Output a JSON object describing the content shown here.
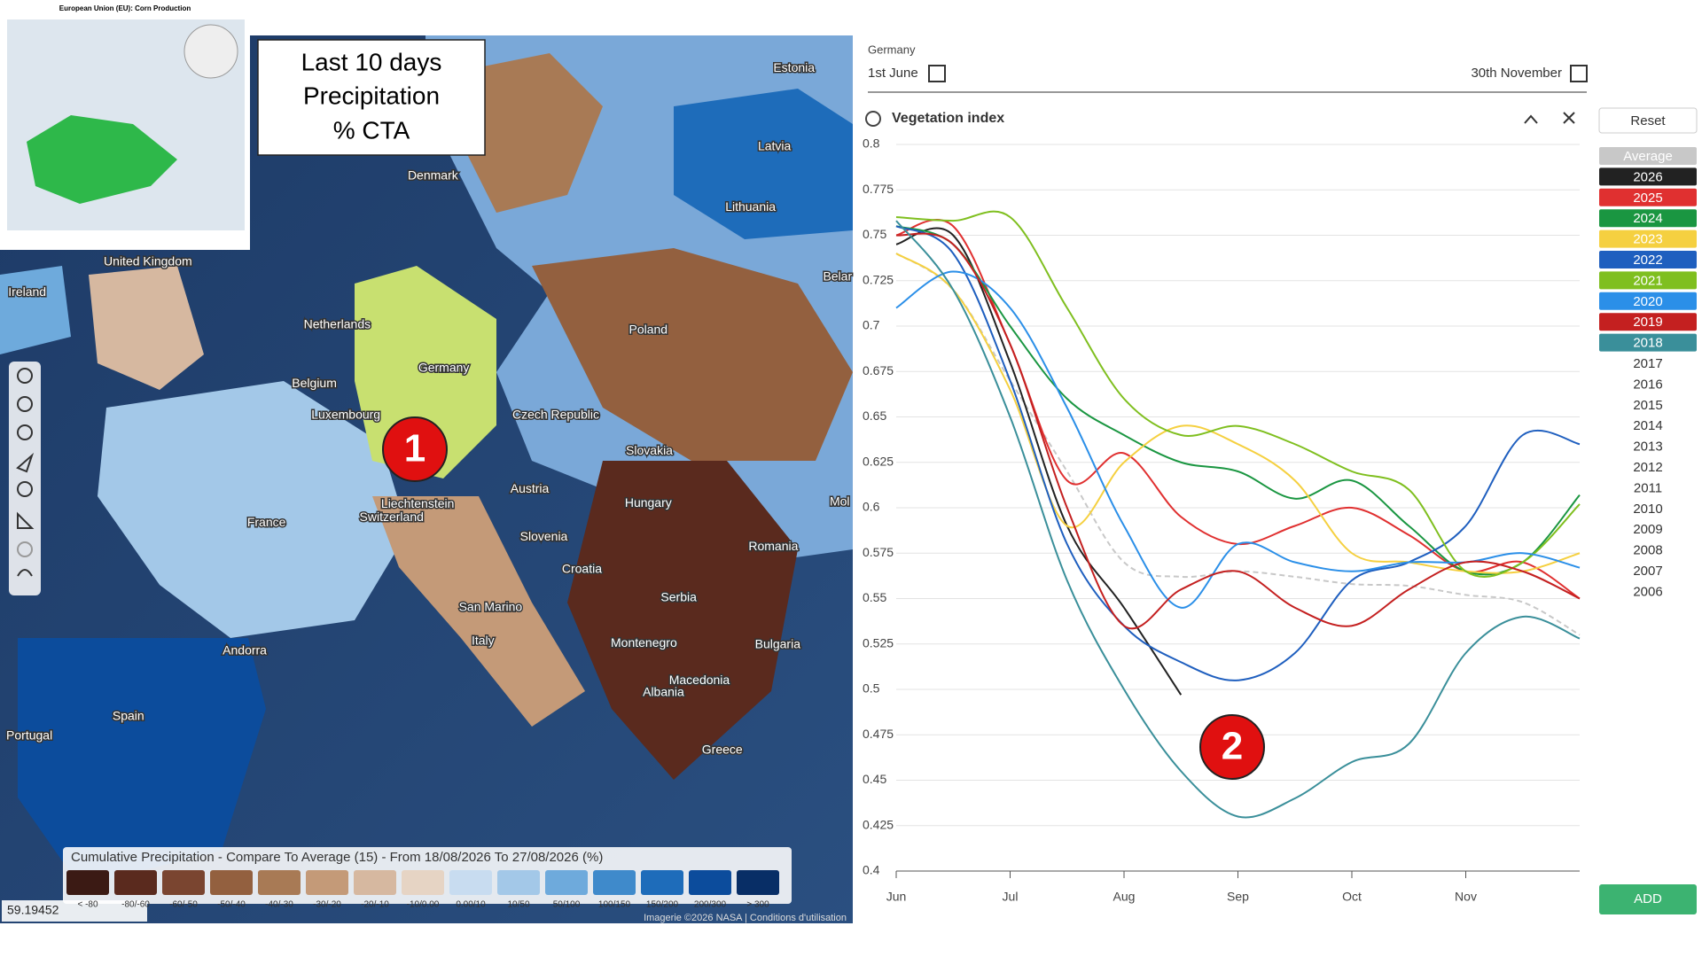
{
  "map": {
    "inset_title": "European Union (EU): Corn Production",
    "overlay_lines": [
      "Last 10 days",
      "Precipitation",
      "% CTA"
    ],
    "badge": "1",
    "country_labels": [
      "Estonia",
      "Latvia",
      "Lithuania",
      "Denmark",
      "United Kingdom",
      "Ireland",
      "Netherlands",
      "Poland",
      "Germany",
      "Belgium",
      "Luxembourg",
      "Czech Republic",
      "Slovakia",
      "France",
      "Liechtenstein",
      "Switzerland",
      "Austria",
      "Hungary",
      "Slovenia",
      "Croatia",
      "Romania",
      "Mol",
      "Belar",
      "San Marino",
      "Serbia",
      "Montenegro",
      "Bulgaria",
      "Andorra",
      "Italy",
      "Macedonia",
      "Albania",
      "Spain",
      "Portugal",
      "Greece"
    ],
    "legend": {
      "title": "Cumulative Precipitation - Compare To Average (15) - From 18/08/2026 To 27/08/2026 (%)",
      "bins": [
        {
          "label": "< -80",
          "color": "#3b1a14"
        },
        {
          "label": "-80/-60",
          "color": "#5a2a1e"
        },
        {
          "label": "-60/-50",
          "color": "#7a4530"
        },
        {
          "label": "-50/-40",
          "color": "#93603f"
        },
        {
          "label": "-40/-30",
          "color": "#a87a55"
        },
        {
          "label": "-30/-20",
          "color": "#c49a78"
        },
        {
          "label": "-20/-10",
          "color": "#d6b8a0"
        },
        {
          "label": "-10/0.00",
          "color": "#e6d4c4"
        },
        {
          "label": "0.00/10",
          "color": "#c8dcf0"
        },
        {
          "label": "10/50",
          "color": "#a3c8e8"
        },
        {
          "label": "50/100",
          "color": "#6eaadc"
        },
        {
          "label": "100/150",
          "color": "#3f8acb"
        },
        {
          "label": "150/200",
          "color": "#1e6cba"
        },
        {
          "label": "200/300",
          "color": "#0c4c9c"
        },
        {
          "label": "> 300",
          "color": "#082e66"
        }
      ]
    },
    "coordinates": "59.19452",
    "attribution": "Imagerie ©2026 NASA | Conditions d'utilisation"
  },
  "panel": {
    "region": "Germany",
    "start": "1st June",
    "end": "30th November",
    "reset": "Reset",
    "add": "ADD",
    "badge": "2",
    "other_years": [
      "2017",
      "2016",
      "2015",
      "2014",
      "2013",
      "2012",
      "2011",
      "2010",
      "2009",
      "2008",
      "2007",
      "2006"
    ]
  },
  "chart_data": {
    "type": "line",
    "title": "Vegetation index",
    "categories": [
      "Jun",
      null,
      "Jul",
      null,
      "Aug",
      null,
      "Sep",
      null,
      "Oct",
      null,
      "Nov",
      null,
      null
    ],
    "ylim": [
      0.4,
      0.8
    ],
    "yticks": [
      0.4,
      0.425,
      0.45,
      0.475,
      0.5,
      0.525,
      0.55,
      0.575,
      0.6,
      0.625,
      0.65,
      0.675,
      0.7,
      0.725,
      0.75,
      0.775,
      0.8
    ],
    "grid": true,
    "series": [
      {
        "name": "Average",
        "color": "#c8c8c8",
        "dashed": true,
        "values": [
          0.74,
          0.72,
          0.67,
          0.62,
          0.57,
          0.562,
          0.565,
          0.562,
          0.558,
          0.557,
          0.552,
          0.548,
          0.53
        ]
      },
      {
        "name": "2026",
        "color": "#222222",
        "values": [
          0.745,
          0.75,
          0.68,
          0.59,
          0.545,
          0.497,
          null,
          null,
          null,
          null,
          null,
          null,
          null
        ]
      },
      {
        "name": "2025",
        "color": "#e03030",
        "values": [
          0.75,
          0.755,
          0.69,
          0.615,
          0.63,
          0.595,
          0.58,
          0.59,
          0.6,
          0.585,
          0.565,
          0.57,
          0.55
        ]
      },
      {
        "name": "2024",
        "color": "#1a9641",
        "values": [
          0.755,
          0.745,
          0.7,
          0.66,
          0.64,
          0.625,
          0.62,
          0.605,
          0.615,
          0.59,
          0.565,
          0.57,
          0.607
        ]
      },
      {
        "name": "2023",
        "color": "#f5d040",
        "values": [
          0.74,
          0.72,
          0.665,
          0.59,
          0.625,
          0.645,
          0.635,
          0.615,
          0.575,
          0.57,
          0.565,
          0.565,
          0.575
        ]
      },
      {
        "name": "2022",
        "color": "#1f5fbf",
        "values": [
          0.755,
          0.74,
          0.67,
          0.58,
          0.535,
          0.515,
          0.505,
          0.52,
          0.56,
          0.57,
          0.59,
          0.64,
          0.635
        ]
      },
      {
        "name": "2021",
        "color": "#7fbf1f",
        "values": [
          0.76,
          0.758,
          0.76,
          0.71,
          0.66,
          0.64,
          0.645,
          0.635,
          0.62,
          0.61,
          0.565,
          0.57,
          0.602
        ]
      },
      {
        "name": "2020",
        "color": "#2b8fe8",
        "values": [
          0.71,
          0.73,
          0.71,
          0.655,
          0.59,
          0.545,
          0.58,
          0.57,
          0.565,
          0.57,
          0.57,
          0.575,
          0.567
        ]
      },
      {
        "name": "2019",
        "color": "#c42020",
        "values": [
          0.75,
          0.745,
          0.69,
          0.6,
          0.535,
          0.555,
          0.565,
          0.545,
          0.535,
          0.555,
          0.57,
          0.565,
          0.55
        ]
      },
      {
        "name": "2018",
        "color": "#3a8f9a",
        "values": [
          0.758,
          0.72,
          0.65,
          0.56,
          0.5,
          0.455,
          0.43,
          0.44,
          0.46,
          0.47,
          0.52,
          0.54,
          0.528
        ]
      }
    ]
  }
}
